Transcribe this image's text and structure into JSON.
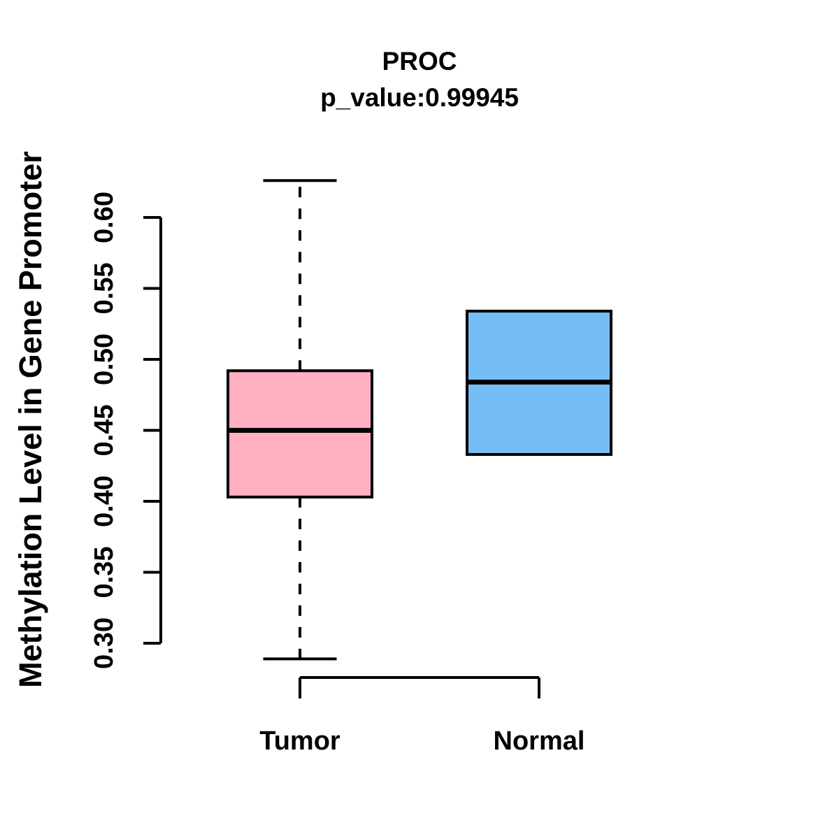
{
  "chart_data": {
    "type": "box",
    "title": "PROC",
    "subtitle": "p_value:0.99945",
    "ylabel": "Methylation Level in Gene Promoter",
    "xlabel": "",
    "categories": [
      "Tumor",
      "Normal"
    ],
    "y_ticks": [
      0.3,
      0.35,
      0.4,
      0.45,
      0.5,
      0.55,
      0.6
    ],
    "y_tick_labels": [
      "0.30",
      "0.35",
      "0.40",
      "0.45",
      "0.50",
      "0.55",
      "0.60"
    ],
    "ylim": [
      0.3,
      0.6
    ],
    "grid": false,
    "legend": "none",
    "background_color": "#FFFFFF",
    "axis_color": "#000000",
    "series": [
      {
        "name": "Tumor",
        "fill_color": "#FFAFC1",
        "border_color": "#000000",
        "whisker_low": 0.289,
        "q1": 0.403,
        "median": 0.45,
        "q3": 0.492,
        "whisker_high": 0.626
      },
      {
        "name": "Normal",
        "fill_color": "#75BEF5",
        "border_color": "#000000",
        "whisker_low": 0.433,
        "q1": 0.433,
        "median": 0.484,
        "q3": 0.534,
        "whisker_high": 0.534
      }
    ]
  }
}
